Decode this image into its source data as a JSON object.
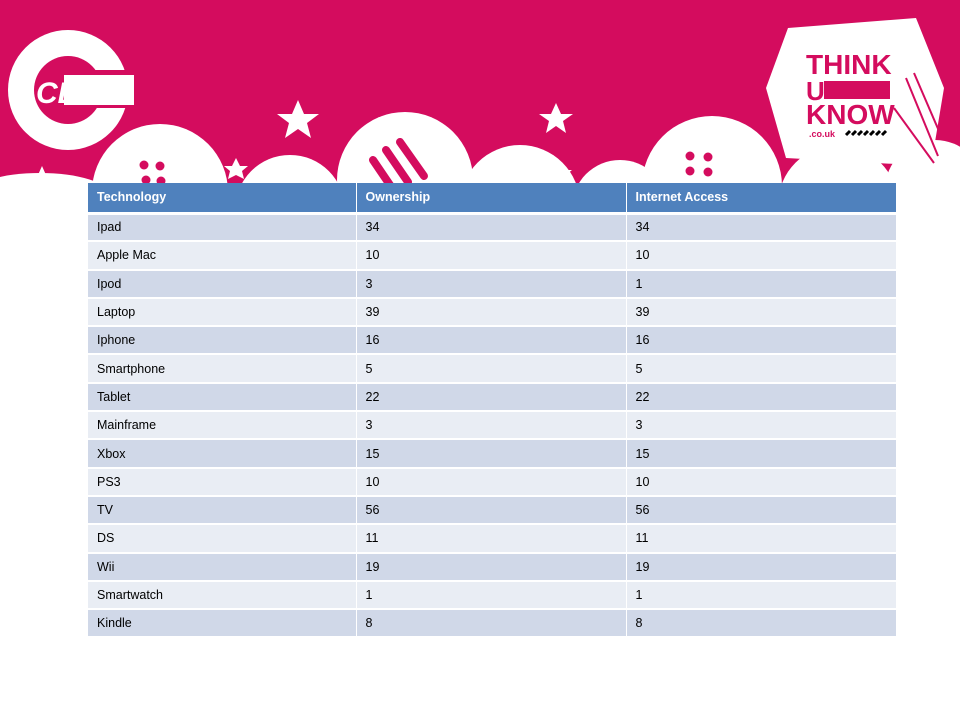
{
  "colors": {
    "brand_pink": "#d40c5e",
    "header_blue": "#4f81bd",
    "row_dark": "#d0d8e8",
    "row_light": "#e9edf4"
  },
  "logos": {
    "left": {
      "text": "CEOP"
    },
    "right": {
      "line1": "THINK",
      "line2": "U",
      "line3": "KNOW",
      "domain": ".co.uk"
    }
  },
  "table": {
    "headers": [
      "Technology",
      "Ownership",
      "Internet Access"
    ],
    "rows": [
      [
        "Ipad",
        "34",
        "34"
      ],
      [
        "Apple Mac",
        "10",
        "10"
      ],
      [
        "Ipod",
        "3",
        "1"
      ],
      [
        "Laptop",
        "39",
        "39"
      ],
      [
        "Iphone",
        "16",
        "16"
      ],
      [
        "Smartphone",
        "5",
        "5"
      ],
      [
        "Tablet",
        "22",
        "22"
      ],
      [
        "Mainframe",
        "3",
        "3"
      ],
      [
        "Xbox",
        "15",
        "15"
      ],
      [
        "PS3",
        "10",
        "10"
      ],
      [
        "TV",
        "56",
        "56"
      ],
      [
        "DS",
        "11",
        "11"
      ],
      [
        "Wii",
        "19",
        "19"
      ],
      [
        "Smartwatch",
        "1",
        "1"
      ],
      [
        "Kindle",
        "8",
        "8"
      ]
    ]
  }
}
